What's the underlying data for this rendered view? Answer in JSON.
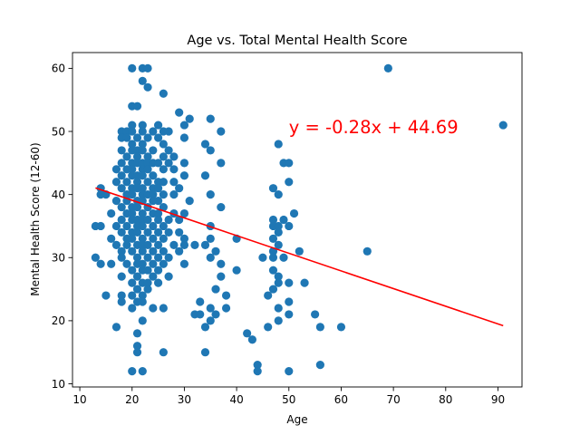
{
  "chart_data": {
    "type": "scatter",
    "title": "Age vs. Total Mental Health Score",
    "xlabel": "Age",
    "ylabel": "Mental Health Score (12-60)",
    "xlim": [
      8.6,
      94.6
    ],
    "ylim": [
      9.5,
      62.5
    ],
    "xticks": [
      "10",
      "20",
      "30",
      "40",
      "50",
      "60",
      "70",
      "80",
      "90"
    ],
    "yticks": [
      "10",
      "20",
      "30",
      "40",
      "50",
      "60"
    ],
    "grid": false,
    "point_color": "#1f77b4",
    "regression": {
      "label": "y = -0.28x + 44.69",
      "slope": -0.28,
      "intercept": 44.69,
      "x_range": [
        13,
        91
      ],
      "color": "#ff0000",
      "label_at": [
        50,
        50
      ]
    },
    "points": [
      [
        20,
        60
      ],
      [
        22,
        60
      ],
      [
        23,
        60
      ],
      [
        69,
        60
      ],
      [
        22,
        58
      ],
      [
        23,
        57
      ],
      [
        26,
        56
      ],
      [
        20,
        54
      ],
      [
        21,
        54
      ],
      [
        29,
        53
      ],
      [
        31,
        52
      ],
      [
        35,
        52
      ],
      [
        20,
        51
      ],
      [
        22,
        51
      ],
      [
        25,
        51
      ],
      [
        30,
        51
      ],
      [
        91,
        51
      ],
      [
        18,
        50
      ],
      [
        19,
        50
      ],
      [
        20,
        50
      ],
      [
        22,
        50
      ],
      [
        24,
        50
      ],
      [
        26,
        50
      ],
      [
        27,
        50
      ],
      [
        37,
        50
      ],
      [
        18,
        49
      ],
      [
        19,
        49
      ],
      [
        21,
        49
      ],
      [
        23,
        49
      ],
      [
        25,
        49
      ],
      [
        30,
        49
      ],
      [
        20,
        48
      ],
      [
        22,
        48
      ],
      [
        26,
        48
      ],
      [
        34,
        48
      ],
      [
        48,
        48
      ],
      [
        18,
        47
      ],
      [
        20,
        47
      ],
      [
        21,
        47
      ],
      [
        22,
        47
      ],
      [
        24,
        47
      ],
      [
        27,
        47
      ],
      [
        35,
        47
      ],
      [
        19,
        46
      ],
      [
        21,
        46
      ],
      [
        23,
        46
      ],
      [
        26,
        46
      ],
      [
        28,
        46
      ],
      [
        18,
        45
      ],
      [
        20,
        45
      ],
      [
        21,
        45
      ],
      [
        22,
        45
      ],
      [
        23,
        45
      ],
      [
        24,
        45
      ],
      [
        25,
        45
      ],
      [
        27,
        45
      ],
      [
        30,
        45
      ],
      [
        37,
        45
      ],
      [
        49,
        45
      ],
      [
        50,
        45
      ],
      [
        17,
        44
      ],
      [
        19,
        44
      ],
      [
        20,
        44
      ],
      [
        22,
        44
      ],
      [
        23,
        44
      ],
      [
        26,
        44
      ],
      [
        28,
        44
      ],
      [
        18,
        43
      ],
      [
        20,
        43
      ],
      [
        21,
        43
      ],
      [
        22,
        43
      ],
      [
        24,
        43
      ],
      [
        30,
        43
      ],
      [
        34,
        43
      ],
      [
        17,
        42
      ],
      [
        19,
        42
      ],
      [
        21,
        42
      ],
      [
        23,
        42
      ],
      [
        25,
        42
      ],
      [
        26,
        42
      ],
      [
        28,
        42
      ],
      [
        50,
        42
      ],
      [
        14,
        41
      ],
      [
        18,
        41
      ],
      [
        20,
        41
      ],
      [
        21,
        41
      ],
      [
        22,
        41
      ],
      [
        24,
        41
      ],
      [
        25,
        41
      ],
      [
        29,
        41
      ],
      [
        47,
        41
      ],
      [
        14,
        40
      ],
      [
        15,
        40
      ],
      [
        19,
        40
      ],
      [
        20,
        40
      ],
      [
        22,
        40
      ],
      [
        23,
        40
      ],
      [
        24,
        40
      ],
      [
        26,
        40
      ],
      [
        28,
        40
      ],
      [
        35,
        40
      ],
      [
        48,
        40
      ],
      [
        17,
        39
      ],
      [
        19,
        39
      ],
      [
        21,
        39
      ],
      [
        22,
        39
      ],
      [
        24,
        39
      ],
      [
        25,
        39
      ],
      [
        31,
        39
      ],
      [
        18,
        38
      ],
      [
        20,
        38
      ],
      [
        21,
        38
      ],
      [
        23,
        38
      ],
      [
        26,
        38
      ],
      [
        37,
        38
      ],
      [
        16,
        37
      ],
      [
        19,
        37
      ],
      [
        20,
        37
      ],
      [
        22,
        37
      ],
      [
        24,
        37
      ],
      [
        25,
        37
      ],
      [
        28,
        37
      ],
      [
        30,
        37
      ],
      [
        51,
        37
      ],
      [
        18,
        36
      ],
      [
        20,
        36
      ],
      [
        21,
        36
      ],
      [
        22,
        36
      ],
      [
        23,
        36
      ],
      [
        25,
        36
      ],
      [
        27,
        36
      ],
      [
        29,
        36
      ],
      [
        47,
        36
      ],
      [
        49,
        36
      ],
      [
        13,
        35
      ],
      [
        14,
        35
      ],
      [
        17,
        35
      ],
      [
        19,
        35
      ],
      [
        21,
        35
      ],
      [
        22,
        35
      ],
      [
        24,
        35
      ],
      [
        26,
        35
      ],
      [
        35,
        35
      ],
      [
        47,
        35
      ],
      [
        48,
        35
      ],
      [
        50,
        35
      ],
      [
        18,
        34
      ],
      [
        20,
        34
      ],
      [
        21,
        34
      ],
      [
        23,
        34
      ],
      [
        25,
        34
      ],
      [
        27,
        34
      ],
      [
        29,
        34
      ],
      [
        48,
        34
      ],
      [
        40,
        33
      ],
      [
        16,
        33
      ],
      [
        19,
        33
      ],
      [
        20,
        33
      ],
      [
        22,
        33
      ],
      [
        24,
        33
      ],
      [
        26,
        33
      ],
      [
        30,
        33
      ],
      [
        35,
        33
      ],
      [
        47,
        33
      ],
      [
        17,
        32
      ],
      [
        19,
        32
      ],
      [
        21,
        32
      ],
      [
        22,
        32
      ],
      [
        23,
        32
      ],
      [
        25,
        32
      ],
      [
        28,
        32
      ],
      [
        30,
        32
      ],
      [
        32,
        32
      ],
      [
        34,
        32
      ],
      [
        48,
        32
      ],
      [
        18,
        31
      ],
      [
        20,
        31
      ],
      [
        22,
        31
      ],
      [
        24,
        31
      ],
      [
        26,
        31
      ],
      [
        29,
        31
      ],
      [
        36,
        31
      ],
      [
        47,
        31
      ],
      [
        52,
        31
      ],
      [
        65,
        31
      ],
      [
        13,
        30
      ],
      [
        18,
        30
      ],
      [
        21,
        30
      ],
      [
        23,
        30
      ],
      [
        25,
        30
      ],
      [
        27,
        30
      ],
      [
        35,
        30
      ],
      [
        45,
        30
      ],
      [
        47,
        30
      ],
      [
        49,
        30
      ],
      [
        14,
        29
      ],
      [
        16,
        29
      ],
      [
        19,
        29
      ],
      [
        21,
        29
      ],
      [
        22,
        29
      ],
      [
        24,
        29
      ],
      [
        26,
        29
      ],
      [
        30,
        29
      ],
      [
        37,
        29
      ],
      [
        20,
        28
      ],
      [
        22,
        28
      ],
      [
        23,
        28
      ],
      [
        25,
        28
      ],
      [
        40,
        28
      ],
      [
        47,
        28
      ],
      [
        18,
        27
      ],
      [
        21,
        27
      ],
      [
        24,
        27
      ],
      [
        27,
        27
      ],
      [
        37,
        27
      ],
      [
        48,
        27
      ],
      [
        20,
        26
      ],
      [
        22,
        26
      ],
      [
        23,
        26
      ],
      [
        25,
        26
      ],
      [
        48,
        26
      ],
      [
        50,
        26
      ],
      [
        53,
        26
      ],
      [
        21,
        25
      ],
      [
        23,
        25
      ],
      [
        36,
        25
      ],
      [
        47,
        25
      ],
      [
        15,
        24
      ],
      [
        18,
        24
      ],
      [
        20,
        24
      ],
      [
        22,
        24
      ],
      [
        38,
        24
      ],
      [
        46,
        24
      ],
      [
        18,
        23
      ],
      [
        21,
        23
      ],
      [
        22,
        23
      ],
      [
        33,
        23
      ],
      [
        50,
        23
      ],
      [
        20,
        22
      ],
      [
        24,
        22
      ],
      [
        26,
        22
      ],
      [
        35,
        22
      ],
      [
        38,
        22
      ],
      [
        48,
        22
      ],
      [
        32,
        21
      ],
      [
        33,
        21
      ],
      [
        36,
        21
      ],
      [
        50,
        21
      ],
      [
        55,
        21
      ],
      [
        22,
        20
      ],
      [
        35,
        20
      ],
      [
        48,
        20
      ],
      [
        17,
        19
      ],
      [
        34,
        19
      ],
      [
        46,
        19
      ],
      [
        56,
        19
      ],
      [
        60,
        19
      ],
      [
        21,
        18
      ],
      [
        42,
        18
      ],
      [
        43,
        17
      ],
      [
        21,
        16
      ],
      [
        21,
        15
      ],
      [
        26,
        15
      ],
      [
        34,
        15
      ],
      [
        44,
        13
      ],
      [
        56,
        13
      ],
      [
        20,
        12
      ],
      [
        22,
        12
      ],
      [
        44,
        12
      ],
      [
        50,
        12
      ]
    ]
  }
}
